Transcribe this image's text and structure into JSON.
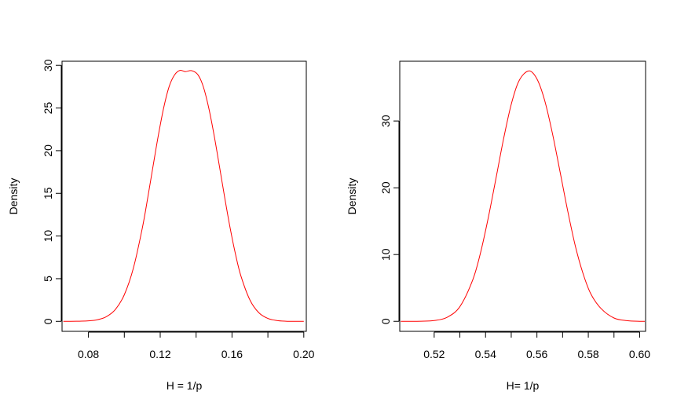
{
  "chart_data": [
    {
      "type": "line",
      "title": "",
      "xlabel": "H = 1/p",
      "ylabel": "Density",
      "xlim": [
        0.0653,
        0.2014
      ],
      "ylim": [
        -1.17,
        30.48
      ],
      "xticks": [
        0.08,
        0.1,
        0.12,
        0.14,
        0.16,
        0.18,
        0.2
      ],
      "xtick_labels": [
        "0.08",
        "",
        "0.12",
        "",
        "0.16",
        "",
        "0.20"
      ],
      "yticks": [
        0,
        5,
        10,
        15,
        20,
        25,
        30
      ],
      "ytick_labels": [
        "0",
        "5",
        "10",
        "15",
        "20",
        "25",
        "30"
      ],
      "grid": false,
      "series": [
        {
          "color": "#ff0000",
          "x": [
            0.066,
            0.07,
            0.075,
            0.08,
            0.085,
            0.09,
            0.095,
            0.1,
            0.105,
            0.11,
            0.113,
            0.116,
            0.119,
            0.122,
            0.125,
            0.128,
            0.131,
            0.134,
            0.1375,
            0.141,
            0.144,
            0.147,
            0.15,
            0.153,
            0.156,
            0.159,
            0.162,
            0.165,
            0.17,
            0.175,
            0.18,
            0.185,
            0.19,
            0.195,
            0.2
          ],
          "y": [
            0.0,
            0.0,
            0.02,
            0.06,
            0.19,
            0.55,
            1.39,
            3.12,
            6.2,
            10.9,
            14.42,
            18.17,
            21.85,
            25.09,
            27.53,
            28.88,
            29.41,
            29.26,
            29.38,
            28.9,
            27.5,
            25.05,
            21.84,
            18.17,
            14.42,
            10.9,
            7.82,
            5.3,
            2.5,
            1.0,
            0.34,
            0.1,
            0.02,
            0.0,
            0.0
          ]
        }
      ]
    },
    {
      "type": "line",
      "title": "",
      "xlabel": "H= 1/p",
      "ylabel": "Density",
      "xlim": [
        0.5066,
        0.6023
      ],
      "ylim": [
        -1.5,
        38.95
      ],
      "xticks": [
        0.52,
        0.53,
        0.54,
        0.55,
        0.56,
        0.57,
        0.58,
        0.59,
        0.6
      ],
      "xtick_labels": [
        "0.52",
        "",
        "0.54",
        "",
        "0.56",
        "",
        "0.58",
        "",
        "0.60"
      ],
      "yticks": [
        0,
        10,
        20,
        30
      ],
      "ytick_labels": [
        "0",
        "10",
        "20",
        "30"
      ],
      "grid": false,
      "series": [
        {
          "color": "#ff0000",
          "x": [
            0.507,
            0.51,
            0.515,
            0.52,
            0.525,
            0.53,
            0.535,
            0.538,
            0.541,
            0.544,
            0.547,
            0.55,
            0.553,
            0.5568,
            0.56,
            0.563,
            0.566,
            0.569,
            0.572,
            0.575,
            0.578,
            0.581,
            0.585,
            0.59,
            0.595,
            0.6,
            0.602
          ],
          "y": [
            0.0,
            0.0,
            0.02,
            0.12,
            0.6,
            2.2,
            6.2,
            10.2,
            15.4,
            21.3,
            27.3,
            32.5,
            36.0,
            37.5,
            36.3,
            33.1,
            28.2,
            22.4,
            16.5,
            11.2,
            7.1,
            4.1,
            1.9,
            0.5,
            0.1,
            0.0,
            0.0
          ]
        }
      ]
    }
  ]
}
